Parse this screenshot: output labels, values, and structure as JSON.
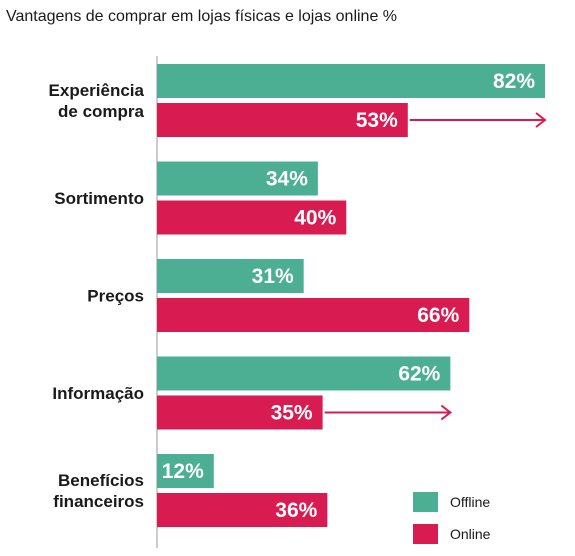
{
  "chart_data": {
    "type": "bar",
    "orientation": "horizontal",
    "title": "Vantagens de comprar em lojas físicas e lojas online %",
    "categories": [
      [
        "Experiência",
        "de compra"
      ],
      [
        "Sortimento"
      ],
      [
        "Preços"
      ],
      [
        "Informação"
      ],
      [
        "Benefícios",
        "financeiros"
      ]
    ],
    "series": [
      {
        "name": "Offline",
        "color": "#4caf93",
        "values": [
          82,
          34,
          31,
          62,
          12
        ],
        "labels": [
          "82%",
          "34%",
          "31%",
          "62%",
          "12%"
        ]
      },
      {
        "name": "Online",
        "color": "#d81b50",
        "values": [
          53,
          40,
          66,
          35,
          36
        ],
        "labels": [
          "53%",
          "40%",
          "66%",
          "35%",
          "36%"
        ]
      }
    ],
    "arrows": [
      {
        "category_index": 0,
        "series": "Online",
        "to_value": 82
      },
      {
        "category_index": 3,
        "series": "Online",
        "to_value": 62
      }
    ],
    "xlim": [
      0,
      82
    ],
    "grid": false,
    "legend_position": "bottom-right"
  }
}
